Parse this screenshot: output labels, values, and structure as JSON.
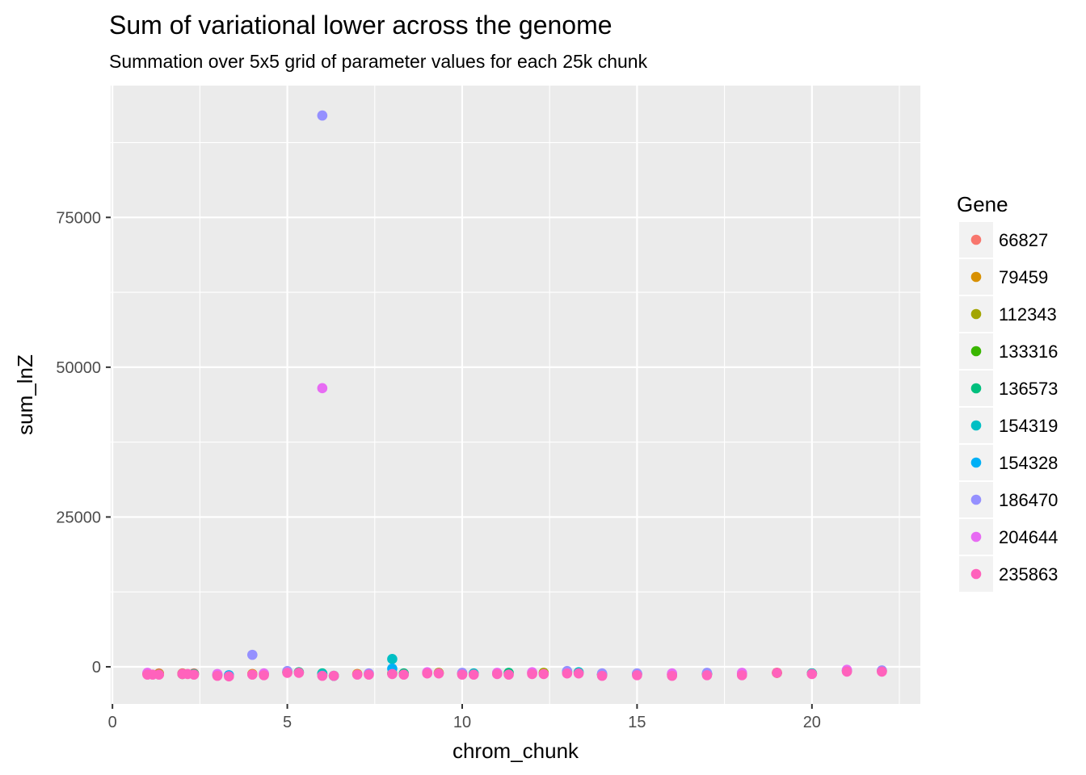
{
  "chart_data": {
    "type": "scatter",
    "title": "Sum of variational lower across the genome",
    "subtitle": "Summation over 5x5 grid of parameter values for each 25k chunk",
    "xlabel": "chrom_chunk",
    "ylabel": "sum_lnZ",
    "xlim": [
      -0.05,
      23.1
    ],
    "ylim": [
      -6200,
      97000
    ],
    "x_ticks": [
      0,
      5,
      10,
      15,
      20
    ],
    "x_tick_labels": [
      "0",
      "5",
      "10",
      "15",
      "20"
    ],
    "y_ticks": [
      0,
      25000,
      50000,
      75000
    ],
    "y_tick_labels": [
      "0",
      "25000",
      "50000",
      "75000"
    ],
    "grid": true,
    "legend_title": "Gene",
    "legend_position": "right",
    "series": [
      {
        "name": "66827",
        "color": "#F8766D",
        "points": [
          [
            1,
            -1100
          ],
          [
            1.33,
            -1100
          ],
          [
            2,
            -1100
          ],
          [
            2.33,
            -1100
          ],
          [
            3,
            -1300
          ],
          [
            6,
            -1400
          ],
          [
            9,
            -1000
          ],
          [
            12,
            -1000
          ],
          [
            15,
            -1200
          ],
          [
            18,
            -1200
          ],
          [
            21,
            -700
          ]
        ]
      },
      {
        "name": "79459",
        "color": "#D89000",
        "points": [
          [
            1,
            -1200
          ],
          [
            4,
            -1200
          ],
          [
            7,
            -1200
          ],
          [
            10,
            -1100
          ],
          [
            13,
            -900
          ],
          [
            16,
            -1300
          ],
          [
            19,
            -1000
          ],
          [
            22,
            -700
          ]
        ]
      },
      {
        "name": "112343",
        "color": "#A3A500",
        "points": [
          [
            1.33,
            -1200
          ],
          [
            4.33,
            -1200
          ],
          [
            6.33,
            -1500
          ],
          [
            9.33,
            -1000
          ],
          [
            12.33,
            -1000
          ],
          [
            19,
            -1000
          ]
        ]
      },
      {
        "name": "133316",
        "color": "#39B600",
        "points": [
          [
            2,
            -1200
          ],
          [
            5,
            -900
          ],
          [
            8,
            -1100
          ],
          [
            11,
            -1100
          ],
          [
            14,
            -1300
          ],
          [
            17,
            -1200
          ],
          [
            20,
            -1100
          ]
        ]
      },
      {
        "name": "136573",
        "color": "#00BF7D",
        "points": [
          [
            2.33,
            -1200
          ],
          [
            5.33,
            -900
          ],
          [
            6,
            -1100
          ],
          [
            8.33,
            -1100
          ],
          [
            11.33,
            -1000
          ],
          [
            14,
            -1300
          ],
          [
            17,
            -1200
          ]
        ]
      },
      {
        "name": "154319",
        "color": "#00BFC4",
        "points": [
          [
            3,
            -1400
          ],
          [
            6,
            -1200
          ],
          [
            8,
            1300
          ],
          [
            10.33,
            -1100
          ],
          [
            13.33,
            -900
          ],
          [
            16,
            -1300
          ],
          [
            20,
            -1100
          ]
        ]
      },
      {
        "name": "154328",
        "color": "#00B0F6",
        "points": [
          [
            3.33,
            -1400
          ],
          [
            6.33,
            -1500
          ],
          [
            8,
            -300
          ],
          [
            13,
            -800
          ],
          [
            15,
            -1200
          ],
          [
            18,
            -1200
          ],
          [
            21,
            -600
          ]
        ]
      },
      {
        "name": "186470",
        "color": "#9590FF",
        "points": [
          [
            4,
            2000
          ],
          [
            6,
            92000
          ],
          [
            5,
            -700
          ],
          [
            7.33,
            -1100
          ],
          [
            10,
            -1000
          ],
          [
            13,
            -700
          ],
          [
            14,
            -1100
          ],
          [
            15,
            -1100
          ],
          [
            17,
            -1000
          ],
          [
            22,
            -600
          ]
        ]
      },
      {
        "name": "204644",
        "color": "#E76BF3",
        "points": [
          [
            6,
            46500
          ],
          [
            1,
            -1000
          ],
          [
            3,
            -1200
          ],
          [
            4.33,
            -1100
          ],
          [
            9,
            -900
          ],
          [
            11,
            -1000
          ],
          [
            12,
            -900
          ],
          [
            16,
            -1100
          ],
          [
            18,
            -1000
          ],
          [
            21,
            -500
          ]
        ]
      },
      {
        "name": "235863",
        "color": "#FF62BC",
        "points": [
          [
            1,
            -1300
          ],
          [
            1.15,
            -1300
          ],
          [
            1.33,
            -1300
          ],
          [
            2,
            -1200
          ],
          [
            2.15,
            -1200
          ],
          [
            2.33,
            -1300
          ],
          [
            3,
            -1500
          ],
          [
            3.33,
            -1600
          ],
          [
            4,
            -1300
          ],
          [
            4.33,
            -1400
          ],
          [
            5,
            -1000
          ],
          [
            5.33,
            -1000
          ],
          [
            6,
            -1500
          ],
          [
            6.33,
            -1500
          ],
          [
            7,
            -1300
          ],
          [
            7.33,
            -1300
          ],
          [
            8,
            -1200
          ],
          [
            8.33,
            -1300
          ],
          [
            9,
            -1100
          ],
          [
            9.33,
            -1100
          ],
          [
            10,
            -1300
          ],
          [
            10.33,
            -1300
          ],
          [
            11,
            -1200
          ],
          [
            11.33,
            -1300
          ],
          [
            12,
            -1200
          ],
          [
            12.33,
            -1200
          ],
          [
            13,
            -1100
          ],
          [
            13.33,
            -1100
          ],
          [
            14,
            -1500
          ],
          [
            15,
            -1400
          ],
          [
            16,
            -1500
          ],
          [
            17,
            -1400
          ],
          [
            18,
            -1400
          ],
          [
            19,
            -1000
          ],
          [
            20,
            -1200
          ],
          [
            21,
            -800
          ],
          [
            22,
            -800
          ]
        ]
      }
    ]
  }
}
